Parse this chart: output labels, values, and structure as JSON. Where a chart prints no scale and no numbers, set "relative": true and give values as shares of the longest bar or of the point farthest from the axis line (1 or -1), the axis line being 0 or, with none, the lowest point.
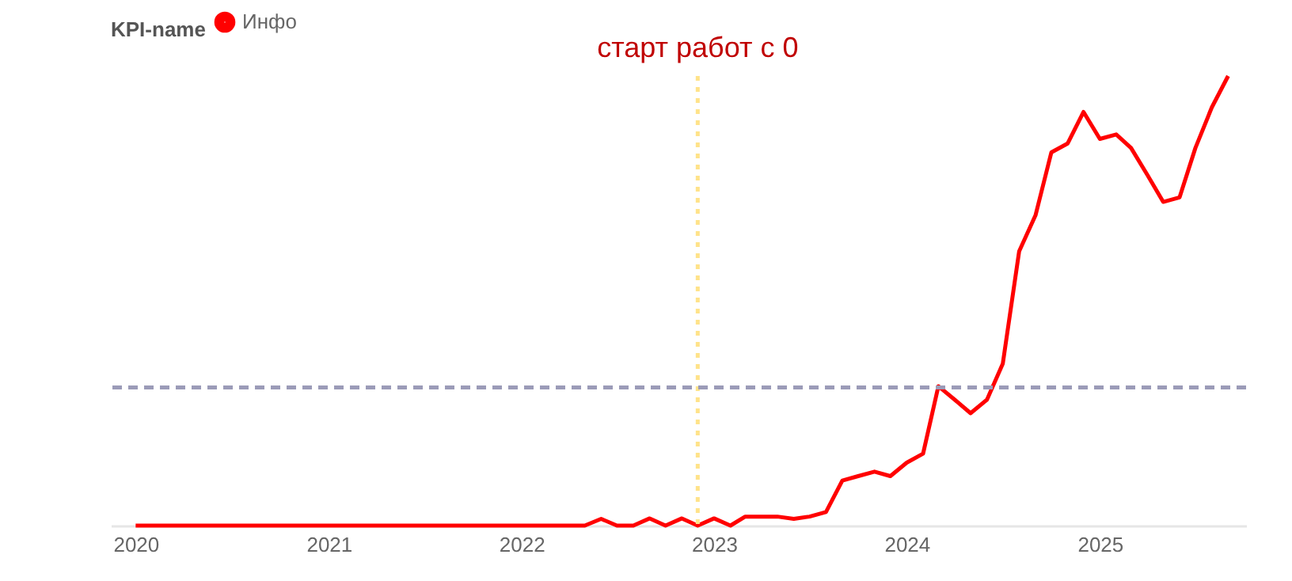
{
  "chart_data": {
    "type": "line",
    "relative": true,
    "legend_title": "KPI-name",
    "legend": "top left",
    "xlim": [
      "2019-11-15",
      "2025-10-05"
    ],
    "xticks": [
      "2020",
      "2021",
      "2022",
      "2023",
      "2024",
      "2025"
    ],
    "x": [
      "2020-01",
      "2020-02",
      "2020-03",
      "2020-04",
      "2020-05",
      "2020-06",
      "2020-07",
      "2020-08",
      "2020-09",
      "2020-10",
      "2020-11",
      "2020-12",
      "2021-01",
      "2021-02",
      "2021-03",
      "2021-04",
      "2021-05",
      "2021-06",
      "2021-07",
      "2021-08",
      "2021-09",
      "2021-10",
      "2021-11",
      "2021-12",
      "2022-01",
      "2022-02",
      "2022-03",
      "2022-04",
      "2022-05",
      "2022-06",
      "2022-07",
      "2022-08",
      "2022-09",
      "2022-10",
      "2022-11",
      "2022-12",
      "2023-01",
      "2023-02",
      "2023-03",
      "2023-04",
      "2023-05",
      "2023-06",
      "2023-07",
      "2023-08",
      "2023-09",
      "2023-10",
      "2023-11",
      "2023-12",
      "2024-01",
      "2024-02",
      "2024-03",
      "2024-04",
      "2024-05",
      "2024-06",
      "2024-07",
      "2024-08",
      "2024-09",
      "2024-10",
      "2024-11",
      "2024-12",
      "2025-01",
      "2025-02",
      "2025-03",
      "2025-04",
      "2025-05",
      "2025-06",
      "2025-07",
      "2025-08",
      "2025-09"
    ],
    "series": [
      {
        "name": "Инфо",
        "color": "#ff0000",
        "values": [
          0,
          0,
          0,
          0,
          0,
          0,
          0,
          0,
          0,
          0,
          0,
          0,
          0,
          0,
          0,
          0,
          0,
          0,
          0,
          0,
          0,
          0,
          0,
          0,
          0,
          0,
          0,
          0,
          0,
          0.015,
          0,
          0,
          0.016,
          0,
          0.016,
          0,
          0.016,
          0,
          0.02,
          0.02,
          0.02,
          0.015,
          0.02,
          0.03,
          0.1,
          0.11,
          0.12,
          0.11,
          0.14,
          0.16,
          0.31,
          0.28,
          0.25,
          0.28,
          0.36,
          0.61,
          0.69,
          0.83,
          0.85,
          0.92,
          0.86,
          0.87,
          0.84,
          0.78,
          0.72,
          0.73,
          0.84,
          0.93,
          1
        ]
      }
    ],
    "ref_lines": [
      {
        "axis": "x",
        "value": "2022-12",
        "label": "старт работ с 0",
        "color": "#ffe38a",
        "line_style": "dotted"
      },
      {
        "axis": "y",
        "value": 0.307,
        "color": "#9b9bb8",
        "line_style": "dashed"
      }
    ]
  }
}
